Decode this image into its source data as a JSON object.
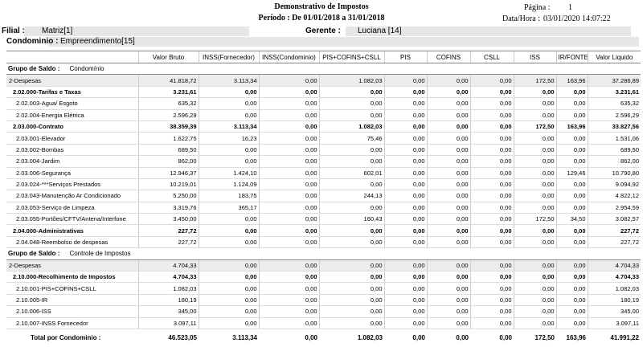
{
  "header": {
    "title": "Demonstrativo de Impostos",
    "period": "Período : De 01/01/2018 a 31/01/2018",
    "page_label": "Página :",
    "page": "1",
    "datetime_label": "Data/Hora :",
    "datetime": "03/01/2020 14:07:22"
  },
  "filter": {
    "filial_label": "Filial :",
    "filial": "Matriz[1]",
    "gerente_label": "Gerente :",
    "gerente": "Luciana [14]",
    "condominio_label": "Condominio :",
    "condominio": "Empreendimento[15]"
  },
  "table": {
    "columns": [
      "Valor Bruto",
      "INSS(Fornecedor)",
      "INSS(Condominio)",
      "PIS+COFINS+CSLL",
      "PIS",
      "COFINS",
      "CSLL",
      "ISS",
      "IR/FONTE",
      "Valor Liquido"
    ],
    "groups": [
      {
        "label": "Grupo de Saldo :",
        "name": "Condomínio",
        "rows": [
          {
            "label": "2-Despesas",
            "style": "group",
            "values": [
              "41.818,72",
              "3.113,34",
              "0,00",
              "1.082,03",
              "0,00",
              "0,00",
              "0,00",
              "172,50",
              "163,96",
              "37.286,89"
            ]
          },
          {
            "label": "2.02.000-Tarifas e Taxas",
            "style": "bold",
            "values": [
              "3.231,61",
              "0,00",
              "0,00",
              "0,00",
              "0,00",
              "0,00",
              "0,00",
              "0,00",
              "0,00",
              "3.231,61"
            ]
          },
          {
            "label": "2.02.003-Agua/ Esgoto",
            "style": "normal",
            "values": [
              "635,32",
              "0,00",
              "0,00",
              "0,00",
              "0,00",
              "0,00",
              "0,00",
              "0,00",
              "0,00",
              "635,32"
            ]
          },
          {
            "label": "2.02.004-Energia Elétrica",
            "style": "normal",
            "values": [
              "2.596,29",
              "0,00",
              "0,00",
              "0,00",
              "0,00",
              "0,00",
              "0,00",
              "0,00",
              "0,00",
              "2.596,29"
            ]
          },
          {
            "label": "2.03.000-Contrato",
            "style": "bold",
            "values": [
              "38.359,39",
              "3.113,34",
              "0,00",
              "1.082,03",
              "0,00",
              "0,00",
              "0,00",
              "172,50",
              "163,96",
              "33.827,56"
            ]
          },
          {
            "label": "2.03.001-Elevador",
            "style": "normal",
            "values": [
              "1.622,75",
              "16,23",
              "0,00",
              "75,46",
              "0,00",
              "0,00",
              "0,00",
              "0,00",
              "0,00",
              "1.531,06"
            ]
          },
          {
            "label": "2.03.002-Bombas",
            "style": "normal",
            "values": [
              "689,50",
              "0,00",
              "0,00",
              "0,00",
              "0,00",
              "0,00",
              "0,00",
              "0,00",
              "0,00",
              "689,50"
            ]
          },
          {
            "label": "2.03.004-Jardim",
            "style": "normal",
            "values": [
              "862,00",
              "0,00",
              "0,00",
              "0,00",
              "0,00",
              "0,00",
              "0,00",
              "0,00",
              "0,00",
              "862,00"
            ]
          },
          {
            "label": "2.03.006-Segurança",
            "style": "normal",
            "values": [
              "12.946,37",
              "1.424,10",
              "0,00",
              "602,01",
              "0,00",
              "0,00",
              "0,00",
              "0,00",
              "129,46",
              "10.790,80"
            ]
          },
          {
            "label": "2.03.024-***Serviços Prestados",
            "style": "normal",
            "values": [
              "10.219,01",
              "1.124,09",
              "0,00",
              "0,00",
              "0,00",
              "0,00",
              "0,00",
              "0,00",
              "0,00",
              "9.094,92"
            ]
          },
          {
            "label": "2.03.043-Manutenção Ar Condicionado",
            "style": "normal",
            "values": [
              "5.250,00",
              "183,75",
              "0,00",
              "244,13",
              "0,00",
              "0,00",
              "0,00",
              "0,00",
              "0,00",
              "4.822,12"
            ]
          },
          {
            "label": "2.03.053-Serviço de Limpeza",
            "style": "normal",
            "values": [
              "3.319,76",
              "365,17",
              "0,00",
              "0,00",
              "0,00",
              "0,00",
              "0,00",
              "0,00",
              "0,00",
              "2.954,59"
            ]
          },
          {
            "label": "2.03.055-Portões/CFTV/Antena/Interfone",
            "style": "normal",
            "values": [
              "3.450,00",
              "0,00",
              "0,00",
              "160,43",
              "0,00",
              "0,00",
              "0,00",
              "172,50",
              "34,50",
              "3.082,57"
            ]
          },
          {
            "label": "2.04.000-Administrativas",
            "style": "bold",
            "values": [
              "227,72",
              "0,00",
              "0,00",
              "0,00",
              "0,00",
              "0,00",
              "0,00",
              "0,00",
              "0,00",
              "227,72"
            ]
          },
          {
            "label": "2.04.048-Reembolso de despesas",
            "style": "normal",
            "values": [
              "227,72",
              "0,00",
              "0,00",
              "0,00",
              "0,00",
              "0,00",
              "0,00",
              "0,00",
              "0,00",
              "227,72"
            ]
          }
        ]
      },
      {
        "label": "Grupo de Saldo :",
        "name": "Controle de Impostos",
        "rows": [
          {
            "label": "2-Despesas",
            "style": "group",
            "values": [
              "4.704,33",
              "0,00",
              "0,00",
              "0,00",
              "0,00",
              "0,00",
              "0,00",
              "0,00",
              "0,00",
              "4.704,33"
            ]
          },
          {
            "label": "2.10.000-Recolhimento de Impostos",
            "style": "bold",
            "values": [
              "4.704,33",
              "0,00",
              "0,00",
              "0,00",
              "0,00",
              "0,00",
              "0,00",
              "0,00",
              "0,00",
              "4.704,33"
            ]
          },
          {
            "label": "2.10.001-PIS+COFINS+CSLL",
            "style": "normal",
            "values": [
              "1.082,03",
              "0,00",
              "0,00",
              "0,00",
              "0,00",
              "0,00",
              "0,00",
              "0,00",
              "0,00",
              "1.082,03"
            ]
          },
          {
            "label": "2.10.005-IR",
            "style": "normal",
            "values": [
              "180,19",
              "0,00",
              "0,00",
              "0,00",
              "0,00",
              "0,00",
              "0,00",
              "0,00",
              "0,00",
              "180,19"
            ]
          },
          {
            "label": "2.10.006-ISS",
            "style": "normal",
            "values": [
              "345,00",
              "0,00",
              "0,00",
              "0,00",
              "0,00",
              "0,00",
              "0,00",
              "0,00",
              "0,00",
              "345,00"
            ]
          },
          {
            "label": "2.10.007-INSS Fornecedor",
            "style": "normal",
            "values": [
              "3.097,11",
              "0,00",
              "0,00",
              "0,00",
              "0,00",
              "0,00",
              "0,00",
              "0,00",
              "0,00",
              "3.097,11"
            ]
          }
        ]
      }
    ],
    "total": {
      "label": "Total por Condominio :",
      "values": [
        "46.523,05",
        "3.113,34",
        "0,00",
        "1.082,03",
        "0,00",
        "0,00",
        "0,00",
        "172,50",
        "163,96",
        "41.991,22"
      ]
    }
  }
}
